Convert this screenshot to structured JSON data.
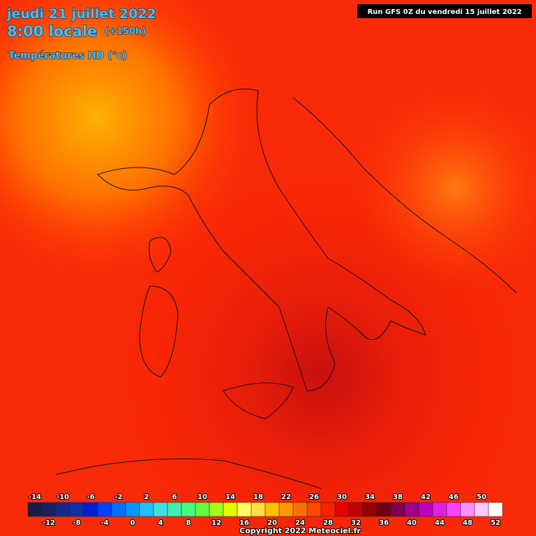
{
  "header": {
    "date": "jeudi 21 juillet 2022",
    "time": "8:00 locale",
    "lead": "(+150h)",
    "variable": "Températures HD (°c)",
    "run": "Run GFS 0Z du vendredi 15 juillet 2022"
  },
  "legend": {
    "values": [
      -14,
      -12,
      -10,
      -8,
      -6,
      -4,
      -2,
      0,
      2,
      4,
      6,
      8,
      10,
      12,
      14,
      16,
      18,
      20,
      22,
      24,
      26,
      28,
      30,
      32,
      34,
      36,
      38,
      40,
      42,
      44,
      46,
      48,
      50,
      52
    ],
    "colors": [
      "#1a1a4a",
      "#1a2060",
      "#18288a",
      "#1030a8",
      "#0020d0",
      "#0040ff",
      "#0070ff",
      "#0098ff",
      "#20c0ff",
      "#40e0e0",
      "#40f0b0",
      "#40ff80",
      "#60ff40",
      "#a0ff20",
      "#e0ff00",
      "#ffff60",
      "#ffe040",
      "#ffc000",
      "#ff9800",
      "#ff7000",
      "#ff4800",
      "#ff2000",
      "#e80000",
      "#c00000",
      "#980000",
      "#700010",
      "#800050",
      "#a00090",
      "#c000c0",
      "#e020e0",
      "#ff40ff",
      "#ff90ff",
      "#ffc8ff",
      "#ffffff"
    ]
  },
  "footer": {
    "copyright": "Copyright 2022 Meteociel.fr"
  }
}
